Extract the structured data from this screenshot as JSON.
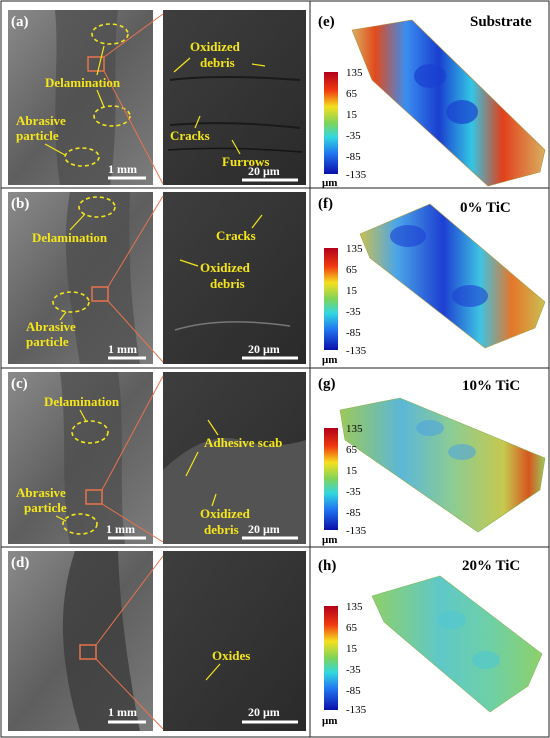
{
  "rows": [
    {
      "left_letter": "(a)",
      "right_letter": "(e)",
      "title_3d": "Substrate",
      "scale_low": "1 mm",
      "scale_high": "20 μm",
      "labels_low": [
        "Delamination",
        "Abrasive",
        "particle"
      ],
      "labels_high": [
        "Oxidized",
        "debris",
        "Cracks",
        "Furrows"
      ]
    },
    {
      "left_letter": "(b)",
      "right_letter": "(f)",
      "title_3d": "0% TiC",
      "scale_low": "1 mm",
      "scale_high": "20 μm",
      "labels_low": [
        "Delamination",
        "Abrasive",
        "particle"
      ],
      "labels_high": [
        "Cracks",
        "Oxidized",
        "debris"
      ]
    },
    {
      "left_letter": "(c)",
      "right_letter": "(g)",
      "title_3d": "10% TiC",
      "scale_low": "1 mm",
      "scale_high": "20 μm",
      "labels_low": [
        "Delamination",
        "Abrasive",
        "particle"
      ],
      "labels_high": [
        "Adhesive scab",
        "Oxidized",
        "debris"
      ]
    },
    {
      "left_letter": "(d)",
      "right_letter": "(h)",
      "title_3d": "20% TiC",
      "scale_low": "1 mm",
      "scale_high": "20 μm",
      "labels_low": [],
      "labels_high": [
        "Oxides"
      ]
    }
  ],
  "colorbar": {
    "ticks": [
      "135",
      "65",
      "15",
      "-35",
      "-85",
      "-135"
    ],
    "unit": "μm"
  },
  "colors": {
    "annotation": "#f5e61a",
    "zoom_box": "#e8734a",
    "panel_border": "#333333"
  }
}
